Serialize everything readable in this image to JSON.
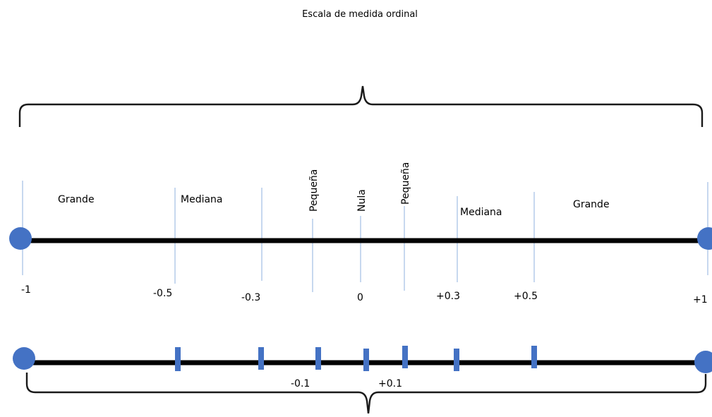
{
  "title": "Escala de medida ordinal",
  "categories": [
    {
      "label": "Grande",
      "orientation": "horizontal"
    },
    {
      "label": "Mediana",
      "orientation": "horizontal"
    },
    {
      "label": "Pequeña",
      "orientation": "vertical"
    },
    {
      "label": "Nula",
      "orientation": "vertical"
    },
    {
      "label": "Pequeña",
      "orientation": "vertical"
    },
    {
      "label": "Mediana",
      "orientation": "horizontal"
    },
    {
      "label": "Grande",
      "orientation": "horizontal"
    }
  ],
  "scale_labels": [
    "-1",
    "-0.5",
    "-0.3",
    "0",
    "+0.3",
    "+0.5",
    "+1"
  ],
  "lower_labels": [
    "-0.1",
    "+0.1"
  ],
  "colors": {
    "axis": "#000000",
    "endpoint": "#4472c4",
    "divider": "#a9c4e6",
    "tick": "#4472c4",
    "brace": "#1a1a1a"
  }
}
